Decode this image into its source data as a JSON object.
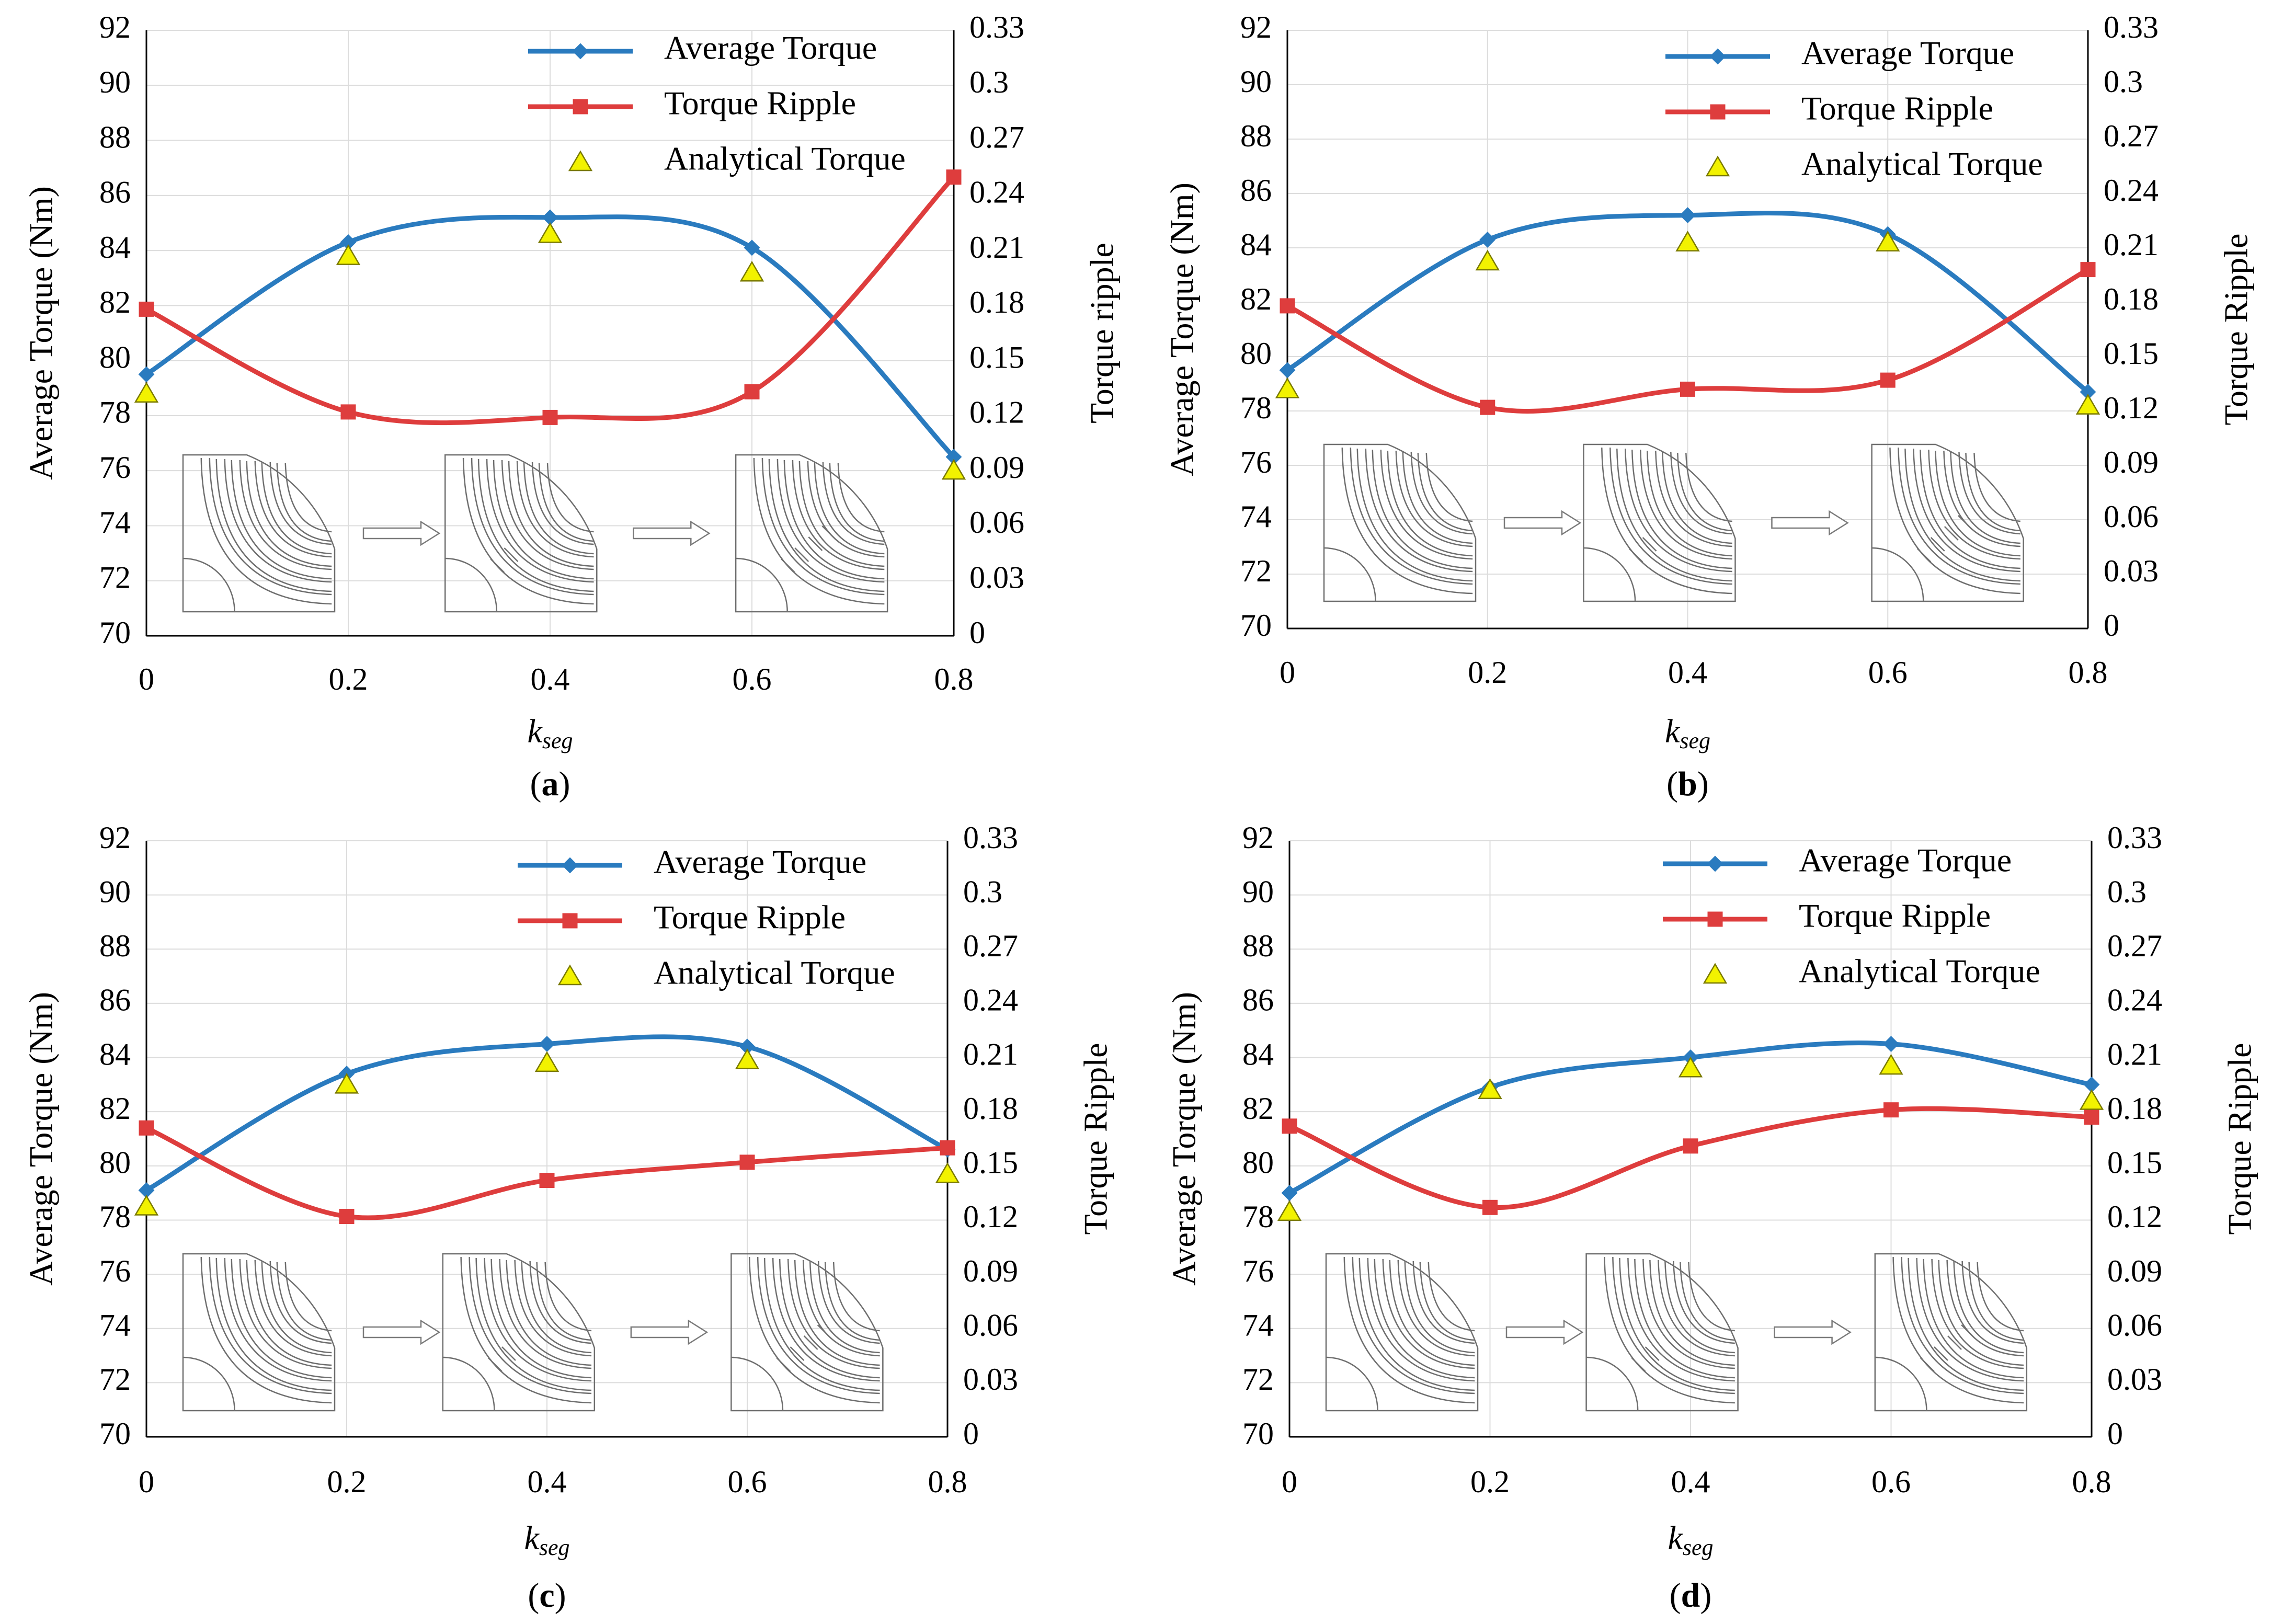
{
  "colors": {
    "average": "#2a7bbf",
    "ripple": "#de3d3d",
    "analytical_fill": "#f2f200",
    "analytical_stroke": "#7a7a00",
    "grid": "#dcdcdc",
    "axis": "#000000",
    "motor_line": "#6e6e6e"
  },
  "icons": [
    "right-arrow-icon",
    "triangle-marker-icon",
    "diamond-marker-icon",
    "square-marker-icon"
  ],
  "chart_data": [
    {
      "type": "line",
      "panel_label": "(a)",
      "xlabel_main": "k",
      "xlabel_sub": "seg",
      "ylabel": "Average Torque (Nm)",
      "y2label": "Torque ripple",
      "x": [
        0,
        0.2,
        0.4,
        0.6,
        0.8
      ],
      "x_ticks": [
        "0",
        "0.2",
        "0.4",
        "0.6",
        "0.8"
      ],
      "xlim": [
        0,
        0.8
      ],
      "ylim": [
        70,
        92
      ],
      "y2lim": [
        0,
        0.33
      ],
      "y_ticks": [
        "70",
        "72",
        "74",
        "76",
        "78",
        "80",
        "82",
        "84",
        "86",
        "88",
        "90",
        "92"
      ],
      "y2_ticks": [
        "0",
        "0.03",
        "0.06",
        "0.09",
        "0.12",
        "0.15",
        "0.18",
        "0.21",
        "0.24",
        "0.27",
        "0.3",
        "0.33"
      ],
      "series": [
        {
          "name": "Average Torque",
          "axis": "left",
          "values": [
            79.5,
            84.3,
            85.2,
            84.1,
            76.5
          ]
        },
        {
          "name": "Torque Ripple",
          "axis": "right",
          "values": [
            0.178,
            0.122,
            0.119,
            0.133,
            0.25
          ]
        },
        {
          "name": "Analytical Torque",
          "axis": "left",
          "values": [
            78.8,
            83.8,
            84.6,
            83.2,
            76.0
          ]
        }
      ]
    },
    {
      "type": "line",
      "panel_label": "(b)",
      "xlabel_main": "k",
      "xlabel_sub": "seg",
      "ylabel": "Average Torque (Nm)",
      "y2label": "Torque Ripple",
      "x": [
        0,
        0.2,
        0.4,
        0.6,
        0.8
      ],
      "x_ticks": [
        "0",
        "0.2",
        "0.4",
        "0.6",
        "0.8"
      ],
      "xlim": [
        0,
        0.8
      ],
      "ylim": [
        70,
        92
      ],
      "y2lim": [
        0,
        0.33
      ],
      "y_ticks": [
        "70",
        "72",
        "74",
        "76",
        "78",
        "80",
        "82",
        "84",
        "86",
        "88",
        "90",
        "92"
      ],
      "y2_ticks": [
        "0",
        "0.03",
        "0.06",
        "0.09",
        "0.12",
        "0.15",
        "0.18",
        "0.21",
        "0.24",
        "0.27",
        "0.3",
        "0.33"
      ],
      "series": [
        {
          "name": "Average Torque",
          "axis": "left",
          "values": [
            79.5,
            84.3,
            85.2,
            84.5,
            78.7
          ]
        },
        {
          "name": "Torque Ripple",
          "axis": "right",
          "values": [
            0.178,
            0.122,
            0.132,
            0.137,
            0.198
          ]
        },
        {
          "name": "Analytical Torque",
          "axis": "left",
          "values": [
            78.8,
            83.5,
            84.2,
            84.2,
            78.2
          ]
        }
      ]
    },
    {
      "type": "line",
      "panel_label": "(c)",
      "xlabel_main": "k",
      "xlabel_sub": "seg",
      "ylabel": "Average Torque (Nm)",
      "y2label": "Torque Ripple",
      "x": [
        0,
        0.2,
        0.4,
        0.6,
        0.8
      ],
      "x_ticks": [
        "0",
        "0.2",
        "0.4",
        "0.6",
        "0.8"
      ],
      "xlim": [
        0,
        0.8
      ],
      "ylim": [
        70,
        92
      ],
      "y2lim": [
        0,
        0.33
      ],
      "y_ticks": [
        "70",
        "72",
        "74",
        "76",
        "78",
        "80",
        "82",
        "84",
        "86",
        "88",
        "90",
        "92"
      ],
      "y2_ticks": [
        "0",
        "0.03",
        "0.06",
        "0.09",
        "0.12",
        "0.15",
        "0.18",
        "0.21",
        "0.24",
        "0.27",
        "0.3",
        "0.33"
      ],
      "series": [
        {
          "name": "Average Torque",
          "axis": "left",
          "values": [
            79.1,
            83.4,
            84.5,
            84.4,
            80.6
          ]
        },
        {
          "name": "Torque Ripple",
          "axis": "right",
          "values": [
            0.171,
            0.122,
            0.142,
            0.152,
            0.16
          ]
        },
        {
          "name": "Analytical Torque",
          "axis": "left",
          "values": [
            78.5,
            83.0,
            83.8,
            83.9,
            79.7
          ]
        }
      ]
    },
    {
      "type": "line",
      "panel_label": "(d)",
      "xlabel_main": "k",
      "xlabel_sub": "seg",
      "ylabel": "Average Torque (Nm)",
      "y2label": "Torque Ripple",
      "x": [
        0,
        0.2,
        0.4,
        0.6,
        0.8
      ],
      "x_ticks": [
        "0",
        "0.2",
        "0.4",
        "0.6",
        "0.8"
      ],
      "xlim": [
        0,
        0.8
      ],
      "ylim": [
        70,
        92
      ],
      "y2lim": [
        0,
        0.33
      ],
      "y_ticks": [
        "70",
        "72",
        "74",
        "76",
        "78",
        "80",
        "82",
        "84",
        "86",
        "88",
        "90",
        "92"
      ],
      "y2_ticks": [
        "0",
        "0.03",
        "0.06",
        "0.09",
        "0.12",
        "0.15",
        "0.18",
        "0.21",
        "0.24",
        "0.27",
        "0.3",
        "0.33"
      ],
      "series": [
        {
          "name": "Average Torque",
          "axis": "left",
          "values": [
            79.0,
            82.9,
            84.0,
            84.5,
            83.0
          ]
        },
        {
          "name": "Torque Ripple",
          "axis": "right",
          "values": [
            0.172,
            0.127,
            0.161,
            0.181,
            0.177
          ]
        },
        {
          "name": "Analytical Torque",
          "axis": "left",
          "values": [
            78.3,
            82.8,
            83.6,
            83.7,
            82.4
          ]
        }
      ]
    }
  ]
}
